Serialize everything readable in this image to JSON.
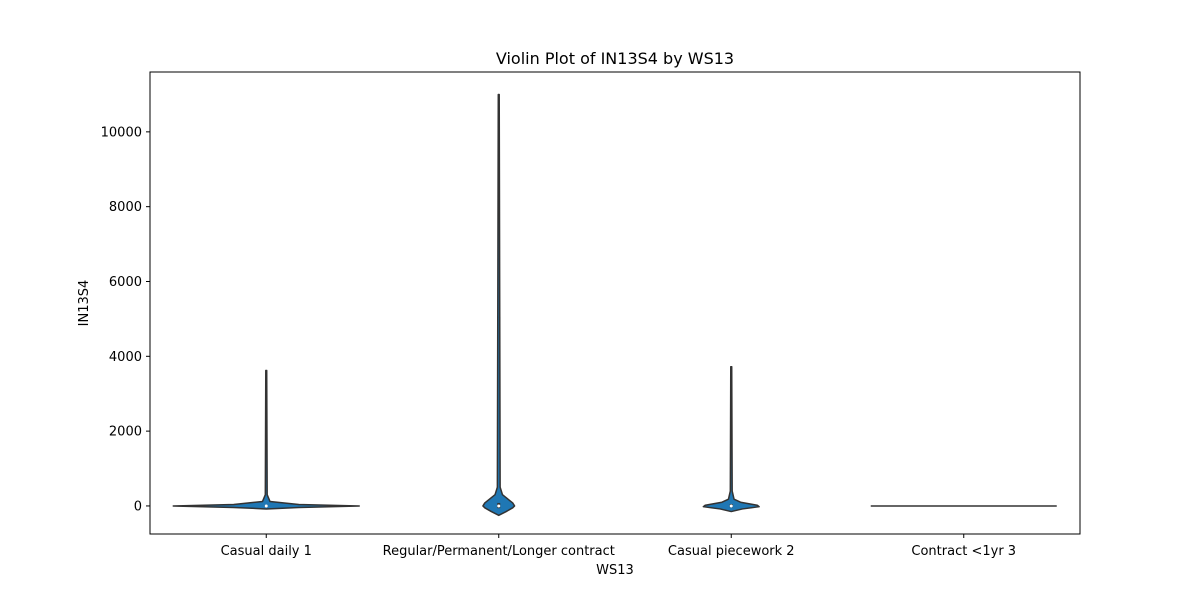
{
  "chart_data": {
    "type": "violin",
    "title": "Violin Plot of IN13S4 by WS13",
    "xlabel": "WS13",
    "ylabel": "IN13S4",
    "ylim": [
      -750,
      11600
    ],
    "yticks": [
      0,
      2000,
      4000,
      6000,
      8000,
      10000
    ],
    "ytick_labels": [
      "0",
      "2000",
      "4000",
      "6000",
      "8000",
      "10000"
    ],
    "grid": false,
    "legend": "none",
    "fill_color": "#1f77b4",
    "edge_color": "#333333",
    "categories": [
      "Casual daily 1",
      "Regular/Permanent/Longer contract",
      "Casual piecework 2",
      "Contract <1yr 3"
    ],
    "violins": [
      {
        "category": "Casual daily 1",
        "min": -80,
        "max": 3620,
        "median": 0,
        "q1": -20,
        "q3": 25,
        "density": [
          [
            -80,
            0.0
          ],
          [
            -40,
            0.35
          ],
          [
            0,
            1.0
          ],
          [
            40,
            0.35
          ],
          [
            120,
            0.04
          ],
          [
            300,
            0.01
          ],
          [
            3620,
            0.005
          ]
        ]
      },
      {
        "category": "Regular/Permanent/Longer contract",
        "min": -250,
        "max": 11000,
        "median": 0,
        "q1": -60,
        "q3": 80,
        "density": [
          [
            -250,
            0.0
          ],
          [
            -150,
            0.08
          ],
          [
            -50,
            0.15
          ],
          [
            0,
            0.17
          ],
          [
            80,
            0.15
          ],
          [
            200,
            0.09
          ],
          [
            300,
            0.04
          ],
          [
            500,
            0.015
          ],
          [
            11000,
            0.005
          ]
        ]
      },
      {
        "category": "Casual piecework 2",
        "min": -150,
        "max": 3720,
        "median": 0,
        "q1": -40,
        "q3": 50,
        "density": [
          [
            -150,
            0.0
          ],
          [
            -80,
            0.12
          ],
          [
            -20,
            0.3
          ],
          [
            20,
            0.28
          ],
          [
            100,
            0.1
          ],
          [
            180,
            0.03
          ],
          [
            400,
            0.01
          ],
          [
            3720,
            0.005
          ]
        ]
      },
      {
        "category": "Contract <1yr 3",
        "min": 0,
        "max": 0,
        "median": 0,
        "q1": 0,
        "q3": 0,
        "density": [
          [
            0,
            1.0
          ]
        ]
      }
    ]
  }
}
